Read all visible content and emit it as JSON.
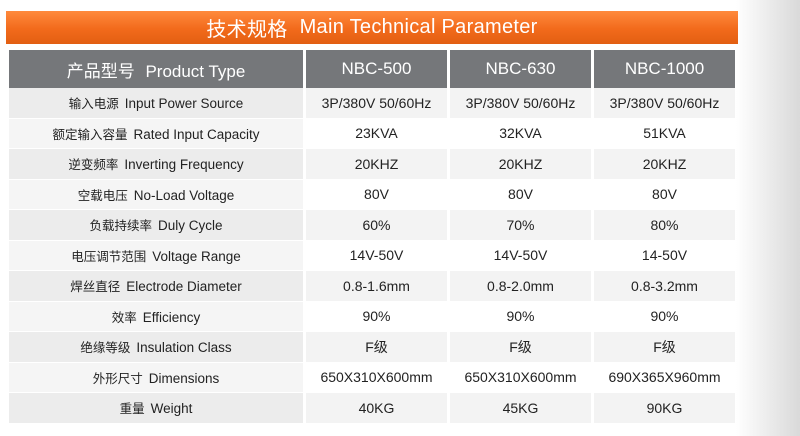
{
  "banner": {
    "cn": "技术规格",
    "en": "Main Technical Parameter"
  },
  "header": {
    "label_cn": "产品型号",
    "label_en": "Product Type",
    "models": [
      "NBC-500",
      "NBC-630",
      "NBC-1000"
    ]
  },
  "rows": [
    {
      "cn": "输入电源",
      "en": "Input Power Source",
      "values": [
        "3P/380V  50/60Hz",
        "3P/380V  50/60Hz",
        "3P/380V  50/60Hz"
      ]
    },
    {
      "cn": "额定输入容量",
      "en": "Rated Input Capacity",
      "values": [
        "23KVA",
        "32KVA",
        "51KVA"
      ]
    },
    {
      "cn": "逆变频率",
      "en": "Inverting Frequency",
      "values": [
        "20KHZ",
        "20KHZ",
        "20KHZ"
      ]
    },
    {
      "cn": "空载电压",
      "en": "No-Load Voltage",
      "values": [
        "80V",
        "80V",
        "80V"
      ]
    },
    {
      "cn": "负载持续率",
      "en": "Duly Cycle",
      "values": [
        "60%",
        "70%",
        "80%"
      ]
    },
    {
      "cn": "电压调节范围",
      "en": "Voltage Range",
      "values": [
        "14V-50V",
        "14V-50V",
        "14-50V"
      ]
    },
    {
      "cn": "焊丝直径",
      "en": "Electrode  Diameter",
      "values": [
        "0.8-1.6mm",
        "0.8-2.0mm",
        "0.8-3.2mm"
      ]
    },
    {
      "cn": "效率",
      "en": "Efficiency",
      "values": [
        "90%",
        "90%",
        "90%"
      ]
    },
    {
      "cn": "绝缘等级",
      "en": "Insulation Class",
      "values": [
        "F级",
        "F级",
        "F级"
      ]
    },
    {
      "cn": "外形尺寸",
      "en": "Dimensions",
      "values": [
        "650X310X600mm",
        "650X310X600mm",
        "690X365X960mm"
      ]
    },
    {
      "cn": "重量",
      "en": "Weight",
      "values": [
        "40KG",
        "45KG",
        "90KG"
      ]
    }
  ],
  "colors": {
    "banner": "#f26a1b",
    "header_bg": "#75777a"
  }
}
